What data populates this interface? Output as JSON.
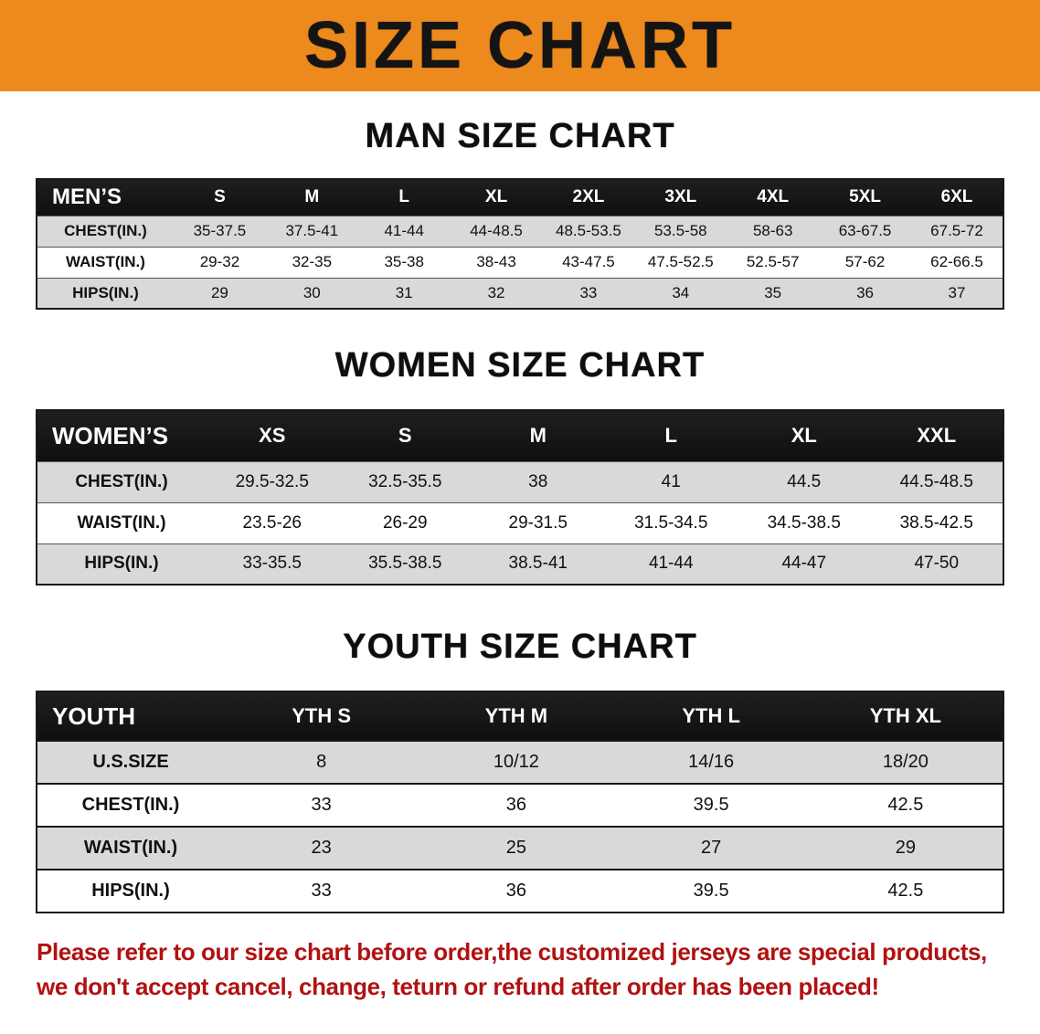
{
  "banner": {
    "title": "SIZE CHART",
    "bg_color": "#ed8a1e"
  },
  "sections": [
    {
      "heading": "MAN SIZE CHART",
      "table": {
        "header_label": "MEN’S",
        "columns": [
          "S",
          "M",
          "L",
          "XL",
          "2XL",
          "3XL",
          "4XL",
          "5XL",
          "6XL"
        ],
        "rows": [
          {
            "label": "CHEST(IN.)",
            "values": [
              "35-37.5",
              "37.5-41",
              "41-44",
              "44-48.5",
              "48.5-53.5",
              "53.5-58",
              "58-63",
              "63-67.5",
              "67.5-72"
            ]
          },
          {
            "label": "WAIST(IN.)",
            "values": [
              "29-32",
              "32-35",
              "35-38",
              "38-43",
              "43-47.5",
              "47.5-52.5",
              "52.5-57",
              "57-62",
              "62-66.5"
            ]
          },
          {
            "label": "HIPS(IN.)",
            "values": [
              "29",
              "30",
              "31",
              "32",
              "33",
              "34",
              "35",
              "36",
              "37"
            ]
          }
        ]
      }
    },
    {
      "heading": "WOMEN SIZE CHART",
      "table": {
        "header_label": "WOMEN’S",
        "columns": [
          "XS",
          "S",
          "M",
          "L",
          "XL",
          "XXL"
        ],
        "rows": [
          {
            "label": "CHEST(IN.)",
            "values": [
              "29.5-32.5",
              "32.5-35.5",
              "38",
              "41",
              "44.5",
              "44.5-48.5"
            ]
          },
          {
            "label": "WAIST(IN.)",
            "values": [
              "23.5-26",
              "26-29",
              "29-31.5",
              "31.5-34.5",
              "34.5-38.5",
              "38.5-42.5"
            ]
          },
          {
            "label": "HIPS(IN.)",
            "values": [
              "33-35.5",
              "35.5-38.5",
              "38.5-41",
              "41-44",
              "44-47",
              "47-50"
            ]
          }
        ]
      }
    },
    {
      "heading": "YOUTH SIZE CHART",
      "table": {
        "header_label": "YOUTH",
        "columns": [
          "YTH S",
          "YTH M",
          "YTH L",
          "YTH XL"
        ],
        "rows": [
          {
            "label": "U.S.SIZE",
            "values": [
              "8",
              "10/12",
              "14/16",
              "18/20"
            ]
          },
          {
            "label": "CHEST(IN.)",
            "values": [
              "33",
              "36",
              "39.5",
              "42.5"
            ]
          },
          {
            "label": "WAIST(IN.)",
            "values": [
              "23",
              "25",
              "27",
              "29"
            ]
          },
          {
            "label": "HIPS(IN.)",
            "values": [
              "33",
              "36",
              "39.5",
              "42.5"
            ]
          }
        ]
      }
    }
  ],
  "disclaimer": {
    "color": "#b01212",
    "lines": [
      "Please refer to our size chart before order,the customized jerseys are special products,",
      "we don't accept cancel, change, teturn or refund after order has been placed!"
    ]
  }
}
